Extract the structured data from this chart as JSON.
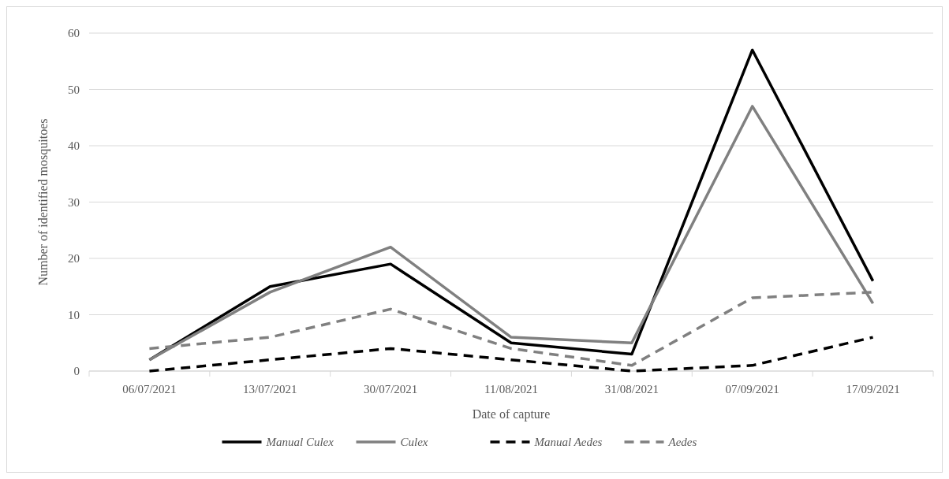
{
  "chart_data": {
    "type": "line",
    "xlabel": "Date of capture",
    "ylabel": "Number of identified mosquitoes",
    "categories": [
      "06/07/2021",
      "13/07/2021",
      "30/07/2021",
      "11/08/2021",
      "31/08/2021",
      "07/09/2021",
      "17/09/2021"
    ],
    "series": [
      {
        "name": "Manual Culex",
        "color": "#000000",
        "line_style": "solid",
        "values": [
          2,
          15,
          19,
          5,
          3,
          57,
          16
        ]
      },
      {
        "name": "Culex",
        "color": "#808080",
        "line_style": "solid",
        "values": [
          2,
          14,
          22,
          6,
          5,
          47,
          12
        ]
      },
      {
        "name": "Manual Aedes",
        "color": "#000000",
        "line_style": "dashed",
        "values": [
          0,
          2,
          4,
          2,
          0,
          1,
          6
        ]
      },
      {
        "name": "Aedes",
        "color": "#808080",
        "line_style": "dashed",
        "values": [
          4,
          6,
          11,
          4,
          1,
          13,
          14
        ]
      }
    ],
    "ylim": [
      0,
      60
    ],
    "yticks": [
      0,
      10,
      20,
      30,
      40,
      50,
      60
    ],
    "grid": "y",
    "legend": "bottom"
  }
}
